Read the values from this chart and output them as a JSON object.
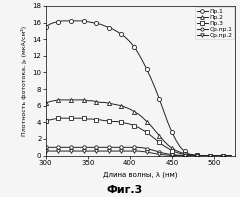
{
  "title": "Фиг.3",
  "xlabel": "Длина волны, λ (нм)",
  "ylabel": "Плотность фототока, jₚ (мкА/см²)",
  "xlim": [
    300,
    525
  ],
  "ylim": [
    0,
    18
  ],
  "yticks": [
    0,
    2,
    4,
    6,
    8,
    10,
    12,
    14,
    16,
    18
  ],
  "xticks": [
    300,
    350,
    400,
    450,
    500
  ],
  "series": [
    {
      "label": "Пр.1",
      "marker": "o",
      "color": "#222222",
      "linewidth": 0.7,
      "markersize": 3.0,
      "markerfacecolor": "white",
      "x": [
        300,
        305,
        310,
        315,
        320,
        325,
        330,
        335,
        340,
        345,
        350,
        355,
        360,
        365,
        370,
        375,
        380,
        385,
        390,
        395,
        400,
        405,
        410,
        415,
        420,
        425,
        430,
        435,
        440,
        445,
        450,
        455,
        460,
        465,
        470,
        475,
        480,
        485,
        490,
        495,
        500,
        505,
        510,
        515,
        520
      ],
      "y": [
        15.5,
        15.8,
        16.0,
        16.1,
        16.2,
        16.2,
        16.2,
        16.2,
        16.2,
        16.2,
        16.1,
        16.0,
        15.9,
        15.8,
        15.6,
        15.4,
        15.2,
        14.9,
        14.6,
        14.2,
        13.7,
        13.1,
        12.3,
        11.4,
        10.4,
        9.3,
        8.1,
        6.8,
        5.4,
        4.0,
        2.8,
        1.8,
        1.0,
        0.5,
        0.2,
        0.1,
        0.05,
        0.02,
        0.01,
        0.0,
        0.0,
        0.0,
        0.0,
        0.0,
        0.0
      ]
    },
    {
      "label": "Пр.2",
      "marker": "^",
      "color": "#222222",
      "linewidth": 0.7,
      "markersize": 3.0,
      "markerfacecolor": "white",
      "x": [
        300,
        305,
        310,
        315,
        320,
        325,
        330,
        335,
        340,
        345,
        350,
        355,
        360,
        365,
        370,
        375,
        380,
        385,
        390,
        395,
        400,
        405,
        410,
        415,
        420,
        425,
        430,
        435,
        440,
        445,
        450,
        455,
        460,
        465,
        470,
        475,
        480,
        485,
        490,
        495,
        500,
        505,
        510,
        515,
        520
      ],
      "y": [
        6.3,
        6.5,
        6.6,
        6.7,
        6.7,
        6.7,
        6.7,
        6.7,
        6.7,
        6.7,
        6.6,
        6.6,
        6.5,
        6.4,
        6.4,
        6.3,
        6.2,
        6.1,
        6.0,
        5.8,
        5.6,
        5.3,
        5.0,
        4.6,
        4.1,
        3.6,
        3.0,
        2.4,
        1.8,
        1.3,
        0.9,
        0.6,
        0.4,
        0.2,
        0.1,
        0.05,
        0.02,
        0.01,
        0.0,
        0.0,
        0.0,
        0.0,
        0.0,
        0.0,
        0.0
      ]
    },
    {
      "label": "Пр.3",
      "marker": "s",
      "color": "#222222",
      "linewidth": 0.7,
      "markersize": 2.8,
      "markerfacecolor": "white",
      "x": [
        300,
        305,
        310,
        315,
        320,
        325,
        330,
        335,
        340,
        345,
        350,
        355,
        360,
        365,
        370,
        375,
        380,
        385,
        390,
        395,
        400,
        405,
        410,
        415,
        420,
        425,
        430,
        435,
        440,
        445,
        450,
        455,
        460,
        465,
        470,
        475,
        480,
        485,
        490,
        495,
        500,
        505,
        510,
        515,
        520
      ],
      "y": [
        4.2,
        4.3,
        4.4,
        4.5,
        4.5,
        4.5,
        4.5,
        4.5,
        4.5,
        4.5,
        4.4,
        4.4,
        4.3,
        4.3,
        4.2,
        4.2,
        4.1,
        4.1,
        4.0,
        3.9,
        3.8,
        3.6,
        3.4,
        3.1,
        2.8,
        2.4,
        2.0,
        1.6,
        1.2,
        0.9,
        0.6,
        0.4,
        0.25,
        0.15,
        0.08,
        0.04,
        0.02,
        0.01,
        0.0,
        0.0,
        0.0,
        0.0,
        0.0,
        0.0,
        0.0
      ]
    },
    {
      "label": "Ср.пр.1",
      "marker": "o",
      "color": "#222222",
      "linewidth": 0.7,
      "markersize": 2.5,
      "markerfacecolor": "white",
      "x": [
        300,
        305,
        310,
        315,
        320,
        325,
        330,
        335,
        340,
        345,
        350,
        355,
        360,
        365,
        370,
        375,
        380,
        385,
        390,
        395,
        400,
        405,
        410,
        415,
        420,
        425,
        430,
        435,
        440,
        445,
        450,
        455,
        460,
        465,
        470,
        475,
        480,
        485,
        490,
        495,
        500,
        505,
        510,
        515,
        520
      ],
      "y": [
        1.0,
        1.0,
        1.0,
        1.0,
        1.0,
        1.0,
        1.0,
        1.0,
        1.0,
        1.0,
        1.0,
        1.0,
        1.0,
        1.0,
        1.0,
        1.0,
        1.0,
        1.0,
        1.0,
        1.0,
        1.0,
        1.0,
        1.0,
        0.95,
        0.85,
        0.72,
        0.58,
        0.43,
        0.3,
        0.2,
        0.12,
        0.07,
        0.04,
        0.02,
        0.01,
        0.0,
        0.0,
        0.0,
        0.0,
        0.0,
        0.0,
        0.0,
        0.0,
        0.0,
        0.0
      ]
    },
    {
      "label": "Ср.пр.2",
      "marker": "v",
      "color": "#222222",
      "linewidth": 0.7,
      "markersize": 2.8,
      "markerfacecolor": "white",
      "x": [
        300,
        305,
        310,
        315,
        320,
        325,
        330,
        335,
        340,
        345,
        350,
        355,
        360,
        365,
        370,
        375,
        380,
        385,
        390,
        395,
        400,
        405,
        410,
        415,
        420,
        425,
        430,
        435,
        440,
        445,
        450,
        455,
        460,
        465,
        470,
        475,
        480,
        485,
        490,
        495,
        500,
        505,
        510,
        515,
        520
      ],
      "y": [
        0.55,
        0.55,
        0.55,
        0.55,
        0.55,
        0.55,
        0.55,
        0.55,
        0.55,
        0.55,
        0.55,
        0.55,
        0.55,
        0.55,
        0.55,
        0.55,
        0.55,
        0.55,
        0.55,
        0.55,
        0.55,
        0.55,
        0.55,
        0.5,
        0.42,
        0.33,
        0.24,
        0.16,
        0.1,
        0.06,
        0.03,
        0.01,
        0.0,
        0.0,
        0.0,
        0.0,
        0.0,
        0.0,
        0.0,
        0.0,
        0.0,
        0.0,
        0.0,
        0.0,
        0.0
      ]
    }
  ],
  "legend_loc": "upper right",
  "background_color": "#f5f5f5",
  "marker_every": 3
}
